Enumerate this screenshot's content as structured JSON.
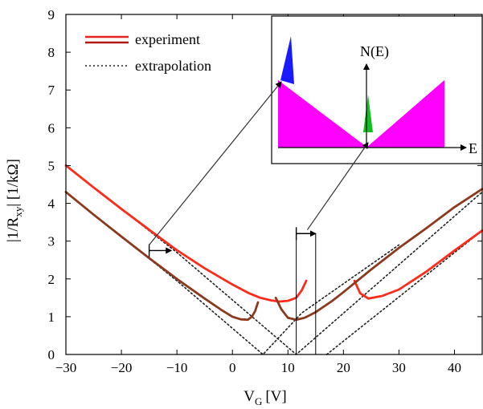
{
  "chart_data": {
    "type": "line",
    "xlabel": "V_G [V]",
    "xlabel_main": "V",
    "xlabel_sub": "G",
    "xlabel_unit": "[V]",
    "ylabel": "|1/R_xy| [1/kΩ]",
    "ylabel_pre": "|1/R",
    "ylabel_sub": "xy",
    "ylabel_post": "|  [1/kΩ]",
    "xlim": [
      -30,
      45
    ],
    "ylim": [
      0,
      9
    ],
    "xticks": [
      -30,
      -20,
      -10,
      0,
      10,
      20,
      30,
      40
    ],
    "xtick_labels": [
      "−30",
      "−20",
      "−10",
      "0",
      "10",
      "20",
      "30",
      "40"
    ],
    "yticks": [
      0,
      1,
      2,
      3,
      4,
      5,
      6,
      7,
      8,
      9
    ],
    "ytick_labels": [
      "0",
      "1",
      "2",
      "3",
      "4",
      "5",
      "6",
      "7",
      "8",
      "9"
    ],
    "legend": {
      "position": "top-left",
      "entries": [
        {
          "label": "experiment",
          "style": "double-solid",
          "color": "#e8221c"
        },
        {
          "label": "extrapolation",
          "style": "dotted",
          "color": "#222222"
        }
      ]
    },
    "series": [
      {
        "name": "experiment",
        "color": "#ff2a1a",
        "points": [
          [
            -30,
            5.0
          ],
          [
            -25,
            4.42
          ],
          [
            -20,
            3.85
          ],
          [
            -15,
            3.3
          ],
          [
            -10,
            2.76
          ],
          [
            -5,
            2.28
          ],
          [
            0,
            1.85
          ],
          [
            3,
            1.62
          ],
          [
            5,
            1.5
          ],
          [
            7,
            1.43
          ],
          [
            8.5,
            1.4
          ],
          [
            10,
            1.42
          ],
          [
            11.5,
            1.5
          ],
          [
            12.5,
            1.7
          ],
          [
            13.3,
            1.95
          ]
        ]
      },
      {
        "name": "experiment",
        "color": "#ff2a1a",
        "points": [
          [
            22,
            1.95
          ],
          [
            23,
            1.62
          ],
          [
            24.5,
            1.48
          ],
          [
            27,
            1.55
          ],
          [
            30,
            1.72
          ],
          [
            35,
            2.2
          ],
          [
            40,
            2.75
          ],
          [
            45,
            3.28
          ]
        ]
      },
      {
        "name": "experiment",
        "color": "#8b3a1e",
        "points": [
          [
            -30,
            4.3
          ],
          [
            -25,
            3.7
          ],
          [
            -20,
            3.12
          ],
          [
            -15,
            2.55
          ],
          [
            -10,
            2.0
          ],
          [
            -5,
            1.48
          ],
          [
            -2,
            1.18
          ],
          [
            0,
            1.0
          ],
          [
            1.5,
            0.93
          ],
          [
            2.8,
            0.92
          ],
          [
            3.5,
            1.0
          ],
          [
            4.1,
            1.15
          ],
          [
            4.6,
            1.38
          ]
        ]
      },
      {
        "name": "experiment",
        "color": "#8b3a1e",
        "points": [
          [
            7.8,
            1.5
          ],
          [
            8.8,
            1.2
          ],
          [
            10,
            0.97
          ],
          [
            11.5,
            0.92
          ],
          [
            13,
            0.97
          ],
          [
            15,
            1.12
          ],
          [
            18,
            1.42
          ],
          [
            20,
            1.65
          ],
          [
            25,
            2.25
          ],
          [
            30,
            2.82
          ],
          [
            35,
            3.35
          ],
          [
            40,
            3.9
          ],
          [
            45,
            4.38
          ]
        ]
      },
      {
        "name": "extrapolation",
        "color": "#222222",
        "dashed": true,
        "points": [
          [
            -30,
            5.0
          ],
          [
            -10,
            2.7
          ],
          [
            11.5,
            0.0
          ],
          [
            45,
            4.3
          ]
        ]
      },
      {
        "name": "extrapolation",
        "color": "#222222",
        "dashed": true,
        "points": [
          [
            -30,
            4.3
          ],
          [
            -10,
            1.95
          ],
          [
            5.5,
            0.0
          ],
          [
            12.5,
            1.1
          ],
          [
            30,
            2.9
          ]
        ]
      },
      {
        "name": "extrapolation",
        "color": "#222222",
        "dashed": true,
        "points": [
          [
            17,
            0.0
          ],
          [
            45,
            3.28
          ]
        ]
      }
    ],
    "annotations": [
      {
        "type": "double-arrow-horizontal",
        "x1": -15,
        "x2": -11,
        "y": 2.75
      },
      {
        "type": "vline",
        "x": 11.5,
        "y0": 0,
        "y1": 3.2
      },
      {
        "type": "vline",
        "x": 15,
        "y0": 0,
        "y1": 3.2
      },
      {
        "type": "double-arrow-horizontal",
        "x1": 11.5,
        "x2": 15,
        "y": 3.2
      },
      {
        "type": "arrow-to-inset",
        "from_x": -15,
        "from_y": 2.9,
        "to_inset": "blue-peak"
      },
      {
        "type": "arrow-to-inset",
        "from_x": 13.5,
        "from_y": 3.3,
        "to_inset": "green-peak"
      }
    ],
    "inset": {
      "ylabel": "N(E)",
      "xlabel": "E",
      "fill_color": "#ff00ff",
      "peak_left_color": "#1a1aff",
      "peak_right_color": "#10c020"
    }
  }
}
